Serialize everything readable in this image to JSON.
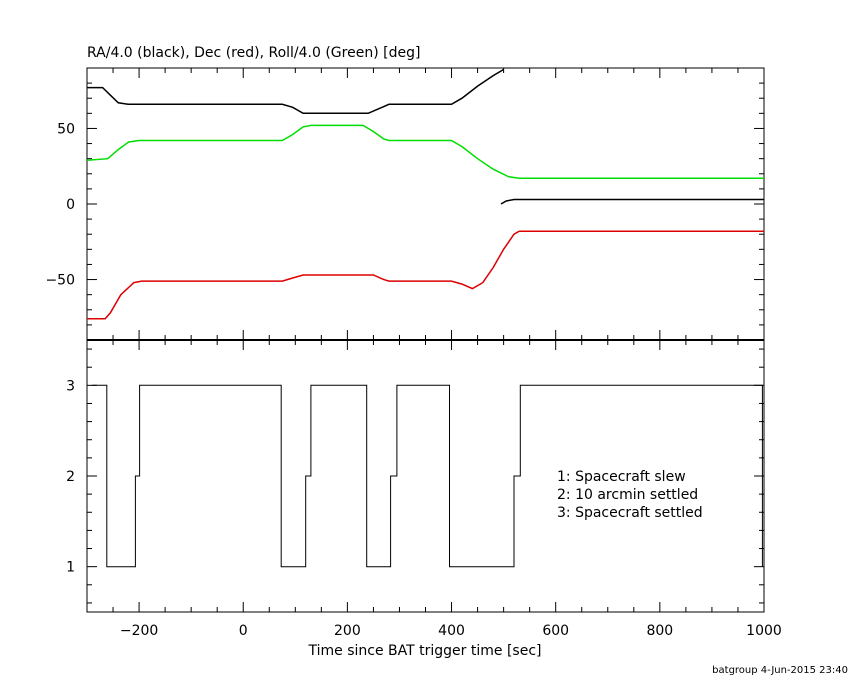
{
  "chart_data": [
    {
      "type": "line",
      "title": "RA/4.0 (black), Dec (red), Roll/4.0 (Green) [deg]",
      "xlim": [
        -300,
        1000
      ],
      "ylim": [
        -90,
        90
      ],
      "yticks": [
        -50,
        0,
        50
      ],
      "series": [
        {
          "color": "#000000",
          "points": [
            [
              -300,
              77
            ],
            [
              -270,
              77
            ],
            [
              -255,
              72
            ],
            [
              -240,
              67
            ],
            [
              -220,
              66
            ],
            [
              75,
              66
            ],
            [
              95,
              64
            ],
            [
              115,
              60
            ],
            [
              240,
              60
            ],
            [
              260,
              63
            ],
            [
              280,
              66
            ],
            [
              400,
              66
            ],
            [
              420,
              70
            ],
            [
              450,
              78
            ],
            [
              480,
              85
            ],
            [
              500,
              89
            ]
          ]
        },
        {
          "color": "#000000",
          "points": [
            [
              495,
              0
            ],
            [
              505,
              2
            ],
            [
              520,
              3
            ],
            [
              1000,
              3
            ]
          ]
        },
        {
          "color": "#00dd00",
          "points": [
            [
              -300,
              29
            ],
            [
              -260,
              30
            ],
            [
              -240,
              36
            ],
            [
              -220,
              41
            ],
            [
              -200,
              42
            ],
            [
              75,
              42
            ],
            [
              95,
              46
            ],
            [
              115,
              51
            ],
            [
              130,
              52
            ],
            [
              230,
              52
            ],
            [
              250,
              48
            ],
            [
              270,
              43
            ],
            [
              280,
              42
            ],
            [
              400,
              42
            ],
            [
              420,
              38
            ],
            [
              450,
              30
            ],
            [
              480,
              23
            ],
            [
              510,
              18
            ],
            [
              530,
              17
            ],
            [
              1000,
              17
            ]
          ]
        },
        {
          "color": "#dd0000",
          "points": [
            [
              -300,
              -76
            ],
            [
              -265,
              -76
            ],
            [
              -255,
              -72
            ],
            [
              -235,
              -60
            ],
            [
              -210,
              -52
            ],
            [
              -195,
              -51
            ],
            [
              75,
              -51
            ],
            [
              95,
              -49
            ],
            [
              115,
              -47
            ],
            [
              250,
              -47
            ],
            [
              270,
              -50
            ],
            [
              280,
              -51
            ],
            [
              400,
              -51
            ],
            [
              420,
              -53
            ],
            [
              440,
              -56
            ],
            [
              460,
              -52
            ],
            [
              480,
              -42
            ],
            [
              500,
              -30
            ],
            [
              520,
              -20
            ],
            [
              530,
              -18
            ],
            [
              1000,
              -18
            ]
          ]
        }
      ]
    },
    {
      "type": "line",
      "xlabel": "Time since BAT trigger time [sec]",
      "xlim": [
        -300,
        1000
      ],
      "ylim": [
        0.5,
        3.5
      ],
      "xticks": [
        -200,
        0,
        200,
        400,
        600,
        800,
        1000
      ],
      "yticks": [
        1,
        2,
        3
      ],
      "series": [
        {
          "color": "#000000",
          "step": true,
          "points": [
            [
              -290,
              3
            ],
            [
              -262,
              3
            ],
            [
              -262,
              1
            ],
            [
              -207,
              1
            ],
            [
              -207,
              2
            ],
            [
              -199,
              2
            ],
            [
              -199,
              3
            ],
            [
              73,
              3
            ],
            [
              73,
              1
            ],
            [
              120,
              1
            ],
            [
              120,
              2
            ],
            [
              130,
              2
            ],
            [
              130,
              3
            ],
            [
              237,
              3
            ],
            [
              237,
              1
            ],
            [
              283,
              1
            ],
            [
              283,
              2
            ],
            [
              295,
              2
            ],
            [
              295,
              3
            ],
            [
              396,
              3
            ],
            [
              396,
              1
            ],
            [
              520,
              1
            ],
            [
              520,
              2
            ],
            [
              532,
              2
            ],
            [
              532,
              3
            ],
            [
              997,
              3
            ],
            [
              997,
              1
            ]
          ]
        }
      ],
      "legend": [
        "1: Spacecraft slew",
        "2: 10 arcmin settled",
        "3: Spacecraft settled"
      ]
    }
  ],
  "footer": "batgroup  4-Jun-2015 23:40"
}
